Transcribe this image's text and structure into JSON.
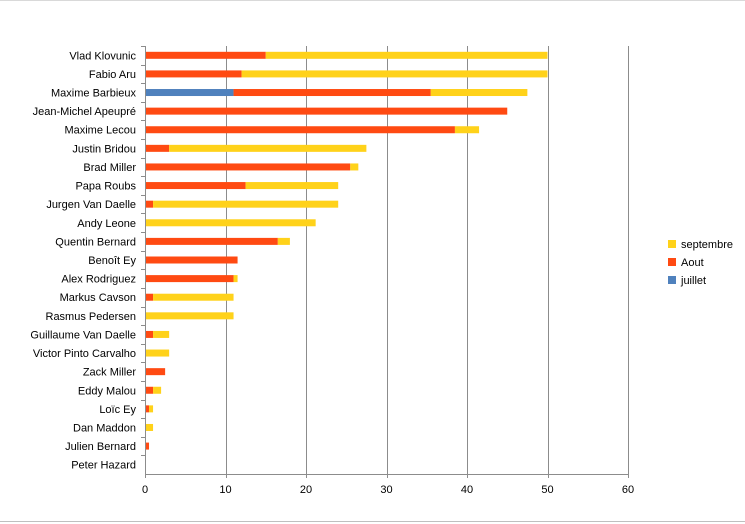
{
  "chart_data": {
    "type": "bar",
    "orientation": "horizontal",
    "stacked": true,
    "title": "",
    "xlabel": "",
    "ylabel": "",
    "xlim": [
      0,
      60
    ],
    "xticks": [
      "0",
      "10",
      "20",
      "30",
      "40",
      "50",
      "60"
    ],
    "grid": true,
    "legend_position": "right",
    "categories": [
      "Vlad Klovunic",
      "Fabio Aru",
      "Maxime Barbieux",
      "Jean-Michel Apeupré",
      "Maxime Lecou",
      "Justin Bridou",
      "Brad Miller",
      "Papa Roubs",
      "Jurgen Van Daelle",
      "Andy Leone",
      "Quentin Bernard",
      "Benoît Ey",
      "Alex Rodriguez",
      "Markus Cavson",
      "Rasmus Pedersen",
      "Guillaume Van Daelle",
      "Victor Pinto Carvalho",
      "Zack Miller",
      "Eddy Malou",
      "Loïc Ey",
      "Dan Maddon",
      "Julien Bernard",
      "Peter Hazard"
    ],
    "series": [
      {
        "name": "juillet",
        "color": "#4f81bd",
        "values": [
          0,
          0,
          11,
          0,
          0,
          0,
          0,
          0,
          0,
          0,
          0,
          0,
          0,
          0,
          0,
          0,
          0,
          0,
          0,
          0,
          0,
          0,
          0
        ]
      },
      {
        "name": "Aout",
        "color": "#ff4a12",
        "values": [
          15,
          12,
          24.5,
          45,
          38.5,
          3,
          25.5,
          12.5,
          1,
          0,
          16.5,
          11.5,
          11,
          1,
          0,
          1,
          0,
          2.5,
          1,
          0.5,
          0,
          0.5,
          0
        ]
      },
      {
        "name": "septembre",
        "color": "#ffd21a",
        "values": [
          35,
          38,
          12,
          0,
          3,
          24.5,
          1,
          11.5,
          23,
          21.2,
          1.5,
          0,
          0.5,
          10,
          11,
          2,
          3,
          0,
          1,
          0.5,
          1,
          0,
          0
        ]
      }
    ],
    "legend_order": [
      "septembre",
      "Aout",
      "juillet"
    ]
  }
}
